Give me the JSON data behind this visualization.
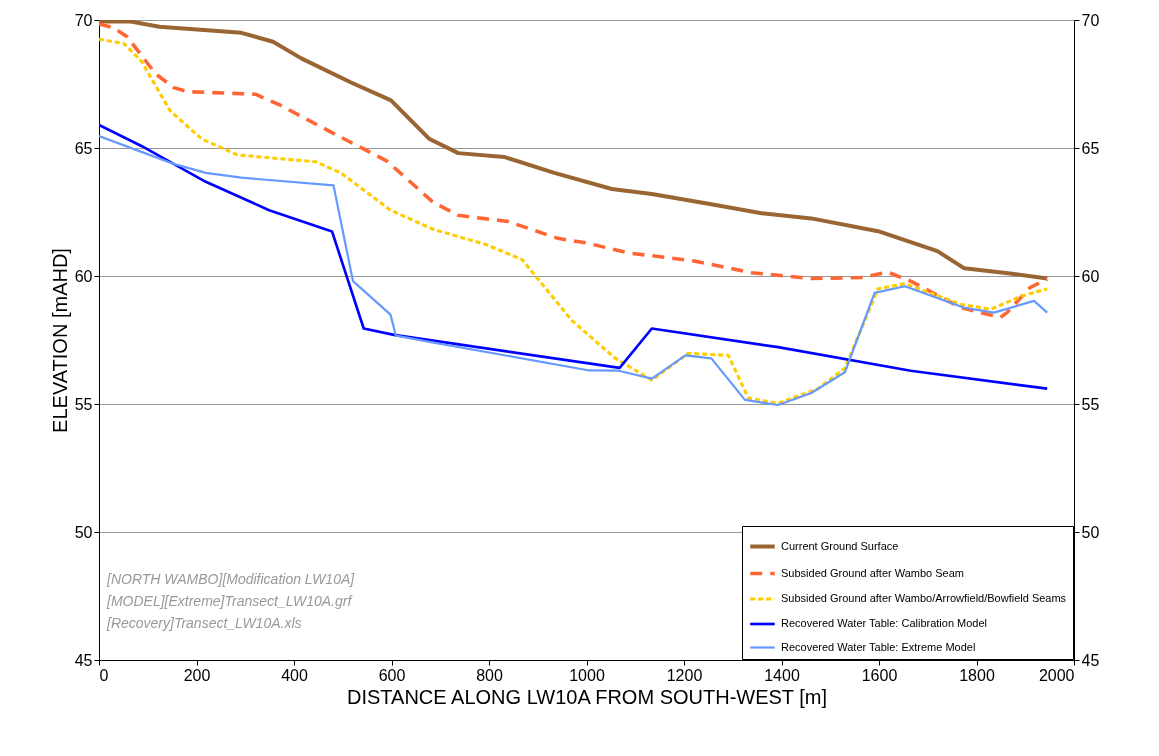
{
  "chart_data": {
    "type": "line",
    "xlabel": "DISTANCE ALONG LW10A FROM SOUTH-WEST  [m]",
    "ylabel": "ELEVATION  [mAHD]",
    "xlim": [
      0,
      2000
    ],
    "xticks": [
      0,
      200,
      400,
      600,
      800,
      1000,
      1200,
      1400,
      1600,
      1800,
      2000
    ],
    "ylim": [
      45,
      70
    ],
    "yticks": [
      45,
      50,
      55,
      60,
      65,
      70
    ],
    "y2lim": [
      45,
      70
    ],
    "y2ticks": [
      45,
      50,
      55,
      60,
      65,
      70
    ],
    "grid": "y",
    "legend": "bottom right",
    "annotations": [
      "[NORTH WAMBO][Modification LW10A]",
      "[MODEL][Extreme]Transect_LW10A.grf",
      "[Recovery]Transect_LW10A.xls"
    ],
    "series": [
      {
        "name": "Current Ground Surface",
        "color": "#996633",
        "line_style": "solid",
        "x": [
          0,
          65,
          124,
          292,
          357,
          415,
          517,
          599,
          678,
          737,
          831,
          934,
          1052,
          1134,
          1256,
          1359,
          1461,
          1598,
          1720,
          1775,
          1869,
          1945
        ],
        "values": [
          69.94,
          69.94,
          69.74,
          69.5,
          69.15,
          68.5,
          67.56,
          66.86,
          65.35,
          64.8,
          64.65,
          64.03,
          63.4,
          63.2,
          62.8,
          62.45,
          62.25,
          61.75,
          60.97,
          60.3,
          60.1,
          59.9
        ]
      },
      {
        "name": "Subsided Ground after Wambo Seam",
        "color": "#ff6633",
        "line_style": "dashed",
        "x": [
          0,
          29,
          57,
          116,
          153,
          182,
          321,
          372,
          488,
          590,
          686,
          737,
          839,
          941,
          998,
          1087,
          1223,
          1338,
          1461,
          1563,
          1618,
          1665,
          1734,
          1767,
          1849,
          1863,
          1910,
          1945
        ],
        "values": [
          69.85,
          69.7,
          69.36,
          67.9,
          67.36,
          67.2,
          67.1,
          66.67,
          65.5,
          64.5,
          62.87,
          62.37,
          62.13,
          61.47,
          61.3,
          60.9,
          60.58,
          60.13,
          59.9,
          59.94,
          60.15,
          59.8,
          59.1,
          58.77,
          58.38,
          58.58,
          59.55,
          59.88
        ]
      },
      {
        "name": "Subsided Ground after Wambo/Arrowfield/Bowfield Seams",
        "color": "#ffcc00",
        "line_style": "dotted",
        "x": [
          0,
          51,
          87,
          146,
          211,
          284,
          445,
          496,
          598,
          686,
          795,
          868,
          970,
          1058,
          1134,
          1209,
          1291,
          1332,
          1393,
          1475,
          1530,
          1598,
          1653,
          1767,
          1829,
          1890,
          1945
        ],
        "values": [
          69.25,
          69.08,
          68.39,
          66.45,
          65.35,
          64.73,
          64.46,
          64.03,
          62.57,
          61.82,
          61.22,
          60.64,
          58.26,
          56.8,
          55.93,
          56.98,
          56.9,
          55.23,
          55.03,
          55.6,
          56.4,
          59.5,
          59.7,
          58.9,
          58.7,
          59.2,
          59.5
        ]
      },
      {
        "name": "Recovered Water Table: Calibration Model",
        "color": "#0000ff",
        "line_style": "solid",
        "x": [
          0,
          87,
          219,
          349,
          478,
          543,
          605,
          1068,
          1134,
          1393,
          1665,
          1945
        ],
        "values": [
          65.9,
          65.08,
          63.68,
          62.57,
          61.74,
          57.95,
          57.7,
          56.41,
          57.95,
          57.22,
          56.3,
          55.6
        ]
      },
      {
        "name": "Recovered Water Table: Extreme Model",
        "color": "#6699ff",
        "line_style": "solid",
        "x": [
          0,
          153,
          219,
          292,
          481,
          521,
          598,
          609,
          692,
          1006,
          1066,
          1134,
          1203,
          1256,
          1325,
          1393,
          1461,
          1530,
          1591,
          1653,
          1775,
          1836,
          1918,
          1945
        ],
        "values": [
          65.47,
          64.38,
          64.03,
          63.84,
          63.54,
          59.8,
          58.49,
          57.67,
          57.38,
          56.31,
          56.3,
          55.99,
          56.9,
          56.78,
          55.16,
          54.96,
          55.43,
          56.24,
          59.34,
          59.6,
          58.76,
          58.57,
          59.03,
          58.57
        ]
      }
    ]
  }
}
